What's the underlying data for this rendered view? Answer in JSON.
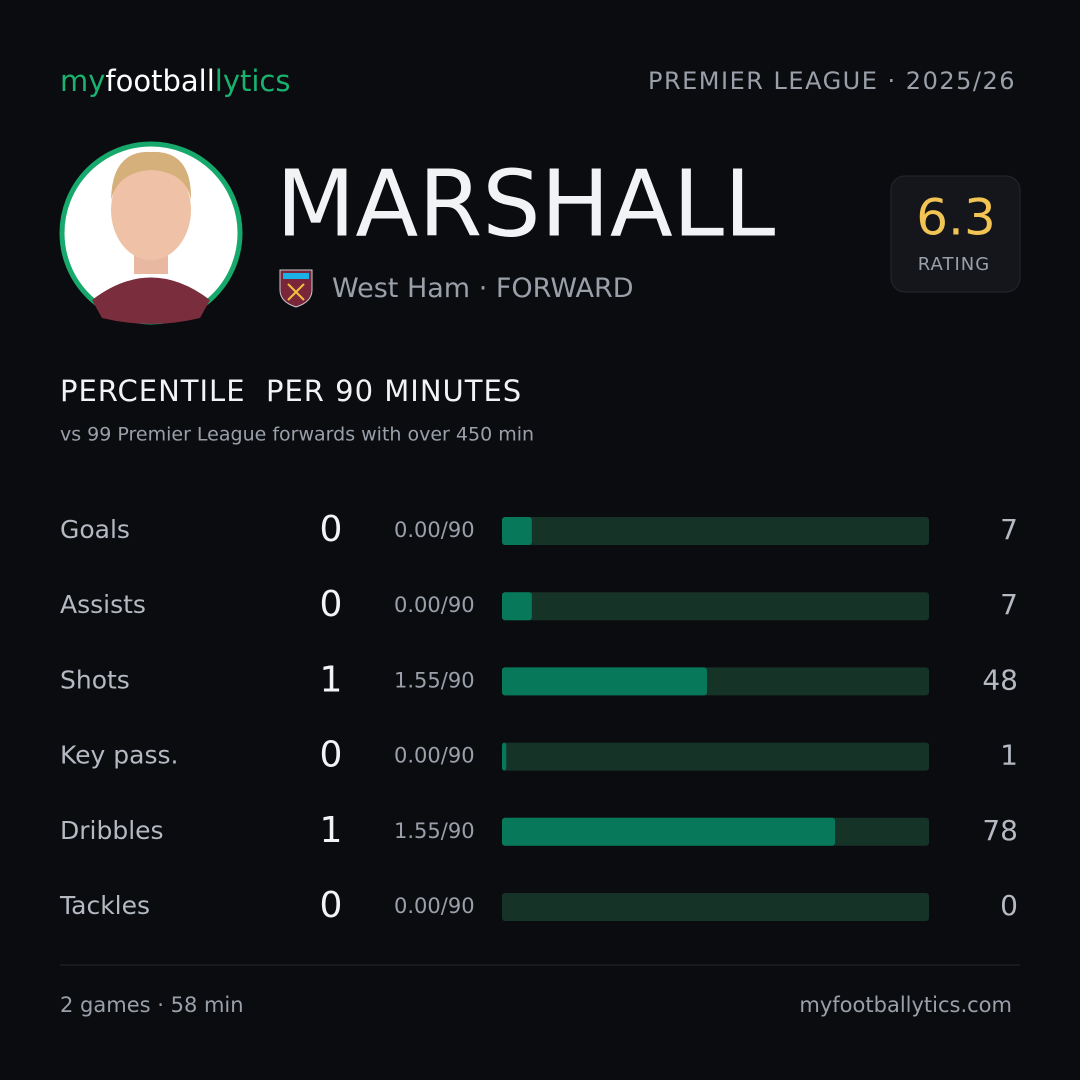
{
  "brand": {
    "part1": "my",
    "part2": "football",
    "part3": "lytics"
  },
  "league": "PREMIER LEAGUE · 2025/26",
  "player": {
    "name": "MARSHALL",
    "club": "West Ham",
    "position": "· FORWARD"
  },
  "rating": {
    "value": 6.3,
    "label": "RATING"
  },
  "chart_data": {
    "type": "bar",
    "orientation": "horizontal",
    "title": "PERCENTILE  PER 90 MINUTES",
    "subtitle": "vs 99 Premier League forwards with over 450 min",
    "categories": [
      "Goals",
      "Assists",
      "Shots",
      "Key pass.",
      "Dribbles",
      "Tackles"
    ],
    "totals": [
      0,
      0,
      1,
      0,
      1,
      0
    ],
    "per90": [
      "0.00/90",
      "0.00/90",
      "1.55/90",
      "0.00/90",
      "1.55/90",
      "0.00/90"
    ],
    "values": [
      7,
      7,
      48,
      1,
      78,
      0
    ],
    "xlim": [
      0,
      100
    ],
    "color": "#07795a",
    "track_color": "#163328"
  },
  "footer": {
    "left": "2 games · 58 min",
    "right": "myfootballytics.com"
  }
}
